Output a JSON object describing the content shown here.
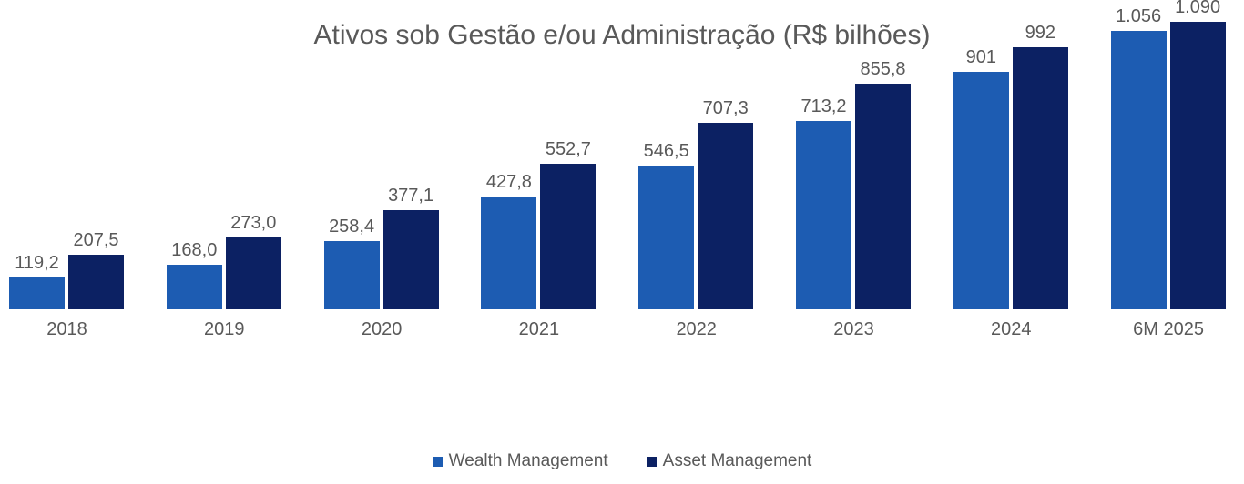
{
  "chart_data": {
    "type": "bar",
    "title": "Ativos sob Gestão e/ou Administração (R$ bilhões)",
    "categories": [
      "2018",
      "2019",
      "2020",
      "2021",
      "2022",
      "2023",
      "2024",
      "6M 2025"
    ],
    "series": [
      {
        "name": "Wealth Management",
        "color": "#1D5CB2",
        "values": [
          119.2,
          168.0,
          258.4,
          427.8,
          546.5,
          713.2,
          901,
          1056
        ],
        "labels": [
          "119,2",
          "168,0",
          "258,4",
          "427,8",
          "546,5",
          "713,2",
          "901",
          "1.056"
        ]
      },
      {
        "name": "Asset Management",
        "color": "#0C2163",
        "values": [
          207.5,
          273.0,
          377.1,
          552.7,
          707.3,
          855.8,
          992,
          1090
        ],
        "labels": [
          "207,5",
          "273,0",
          "377,1",
          "552,7",
          "707,3",
          "855,8",
          "992",
          "1.090"
        ]
      }
    ],
    "ylim": [
      0,
      1090
    ],
    "grid": false,
    "axes_visible": false,
    "legend_position": "bottom-center",
    "value_labels": "outside-end",
    "text_color": "#595959"
  }
}
